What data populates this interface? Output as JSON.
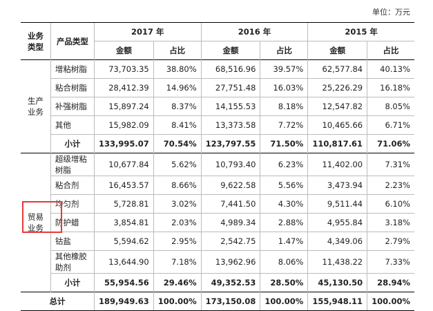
{
  "unit_label": "单位：万元",
  "headers": {
    "biz_type": "业务类型",
    "product_type": "产品类型",
    "years": [
      "2017 年",
      "2016 年",
      "2015 年"
    ],
    "amount": "金额",
    "ratio": "占比"
  },
  "groups": [
    {
      "name": "生产业务",
      "rows": [
        {
          "product": "增粘树脂",
          "v": [
            "73,703.35",
            "38.80%",
            "68,516.96",
            "39.57%",
            "62,577.84",
            "40.13%"
          ]
        },
        {
          "product": "粘合树脂",
          "v": [
            "28,412.39",
            "14.96%",
            "27,751.48",
            "16.03%",
            "25,226.29",
            "16.18%"
          ]
        },
        {
          "product": "补强树脂",
          "v": [
            "15,897.24",
            "8.37%",
            "14,155.53",
            "8.18%",
            "12,547.82",
            "8.05%"
          ]
        },
        {
          "product": "其他",
          "v": [
            "15,982.09",
            "8.41%",
            "13,373.58",
            "7.72%",
            "10,465.66",
            "6.71%"
          ]
        }
      ],
      "subtotal": {
        "label": "小计",
        "v": [
          "133,995.07",
          "70.54%",
          "123,797.55",
          "71.50%",
          "110,817.61",
          "71.06%"
        ]
      }
    },
    {
      "name": "贸易业务",
      "rows": [
        {
          "product": "超级增粘树脂",
          "v": [
            "10,677.84",
            "5.62%",
            "10,793.40",
            "6.23%",
            "11,402.00",
            "7.31%"
          ]
        },
        {
          "product": "粘合剂",
          "v": [
            "16,453.57",
            "8.66%",
            "9,622.58",
            "5.56%",
            "3,473.94",
            "2.23%"
          ]
        },
        {
          "product": "均匀剂",
          "v": [
            "5,728.81",
            "3.02%",
            "7,441.50",
            "4.30%",
            "9,511.44",
            "6.10%"
          ]
        },
        {
          "product": "防护蜡",
          "v": [
            "3,854.81",
            "2.03%",
            "4,989.34",
            "2.88%",
            "4,955.84",
            "3.18%"
          ]
        },
        {
          "product": "钴盐",
          "v": [
            "5,594.62",
            "2.95%",
            "2,542.75",
            "1.47%",
            "4,349.06",
            "2.79%"
          ]
        },
        {
          "product": "其他橡胶助剂",
          "v": [
            "13,644.90",
            "7.18%",
            "13,962.96",
            "8.06%",
            "11,438.22",
            "7.33%"
          ]
        }
      ],
      "subtotal": {
        "label": "小计",
        "v": [
          "55,954.56",
          "29.46%",
          "49,352.53",
          "28.50%",
          "45,130.50",
          "28.94%"
        ]
      }
    }
  ],
  "total": {
    "label": "总计",
    "v": [
      "189,949.63",
      "100.00%",
      "173,150.08",
      "100.00%",
      "155,948.11",
      "100.00%"
    ]
  },
  "colors": {
    "highlight": "#e53935",
    "rule": "#000000",
    "separator": "#bbbbbb"
  }
}
